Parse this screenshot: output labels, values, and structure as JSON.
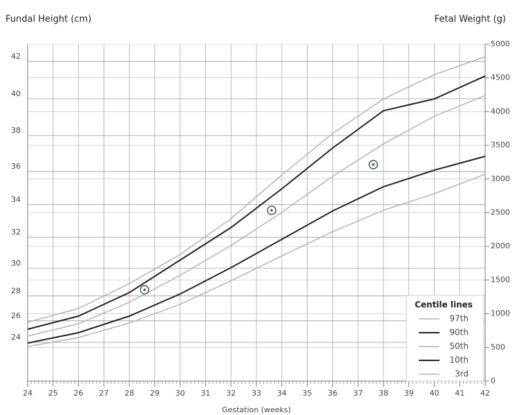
{
  "chart_data": {
    "type": "line",
    "y_title": "Fundal Height (cm)",
    "y2_title": "Fetal Weight (g)",
    "x_title": "Gestation (weeks)",
    "legend_title": "Centile lines",
    "legend": "lower right",
    "grid": true,
    "xlim": [
      24,
      42
    ],
    "xticks": [
      24,
      25,
      26,
      27,
      28,
      29,
      30,
      31,
      32,
      33,
      34,
      35,
      36,
      37,
      38,
      39,
      40,
      41,
      42
    ],
    "y2lim": [
      0,
      5000
    ],
    "y2ticks": [
      0,
      500,
      1000,
      1500,
      2000,
      2500,
      3000,
      3500,
      4000,
      4500,
      5000
    ],
    "yticks": [
      24,
      26,
      28,
      30,
      32,
      34,
      36,
      38,
      40,
      42
    ],
    "ytick_weight_g": [
      575,
      895,
      1265,
      1675,
      2135,
      2620,
      3110,
      3645,
      4190,
      4745
    ],
    "x": [
      24,
      26,
      28,
      30,
      32,
      34,
      36,
      38,
      40,
      42
    ],
    "series": [
      {
        "name": "97th",
        "color": "#b3b3b3",
        "axis": "y2",
        "values": [
          873,
          1078,
          1448,
          1879,
          2413,
          3060,
          3676,
          4189,
          4548,
          4815
        ]
      },
      {
        "name": "90th",
        "color": "#222222",
        "axis": "y2",
        "values": [
          770,
          965,
          1314,
          1797,
          2279,
          2854,
          3460,
          4014,
          4189,
          4528
        ]
      },
      {
        "name": "50th",
        "color": "#b3b3b3",
        "axis": "y2",
        "values": [
          667,
          852,
          1170,
          1571,
          2012,
          2505,
          3039,
          3522,
          3932,
          4240
        ]
      },
      {
        "name": "10th",
        "color": "#222222",
        "axis": "y2",
        "values": [
          565,
          719,
          965,
          1294,
          1684,
          2105,
          2526,
          2885,
          3132,
          3337
        ]
      },
      {
        "name": "3rd",
        "color": "#b3b3b3",
        "axis": "y2",
        "values": [
          513,
          647,
          862,
          1140,
          1489,
          1858,
          2218,
          2536,
          2782,
          3070
        ]
      }
    ],
    "points": {
      "color": "#3d5a6e",
      "x": [
        28.6,
        33.6,
        37.6
      ],
      "values": [
        1355,
        2536,
        3214
      ]
    }
  }
}
